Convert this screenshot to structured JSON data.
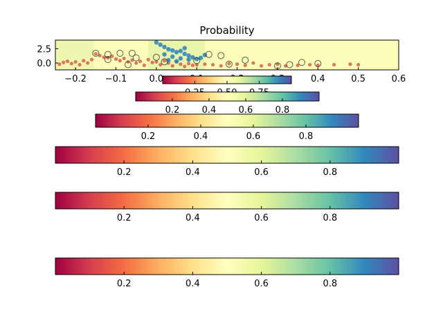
{
  "chart_data": {
    "type": "scatter",
    "title": "Probability",
    "xlabel": "",
    "ylabel": "",
    "xlim": [
      -0.25,
      0.6
    ],
    "ylim": [
      -1.2,
      4.0
    ],
    "x_ticks": [
      "−0.2",
      "−0.1",
      "0.0",
      "0.1",
      "0.2",
      "0.3",
      "0.4",
      "0.5",
      "0.6"
    ],
    "x_tick_values": [
      -0.2,
      -0.1,
      0.0,
      0.1,
      0.2,
      0.3,
      0.4,
      0.5,
      0.6
    ],
    "y_ticks": [
      "0.0",
      "2.5"
    ],
    "y_tick_values": [
      0.0,
      2.5
    ],
    "grid": false,
    "colormap": "Spectral",
    "colormap_stops": [
      "#9e0142",
      "#d53e4f",
      "#f46d43",
      "#fdae61",
      "#fee08b",
      "#ffffbf",
      "#e6f598",
      "#abdda4",
      "#66c2a5",
      "#3288bd",
      "#5e4fa2"
    ],
    "point_color_low": "#d6604d",
    "point_color_high": "#2c7fb8",
    "background_threshold_x": -0.155,
    "series": [
      {
        "values": [
          [
            -0.24,
            -0.2
          ],
          [
            -0.23,
            0.1
          ],
          [
            -0.22,
            0.3
          ],
          [
            -0.21,
            -0.1
          ],
          [
            -0.2,
            0.2
          ],
          [
            -0.19,
            -0.3
          ],
          [
            -0.18,
            0.4
          ],
          [
            -0.17,
            0.0
          ],
          [
            -0.16,
            0.6
          ],
          [
            -0.15,
            1.6
          ],
          [
            -0.14,
            1.3
          ],
          [
            -0.13,
            1.0
          ],
          [
            -0.12,
            0.9
          ],
          [
            -0.11,
            1.2
          ],
          [
            -0.1,
            0.7
          ],
          [
            -0.09,
            0.4
          ],
          [
            -0.08,
            0.8
          ],
          [
            -0.07,
            0.2
          ],
          [
            -0.06,
            0.5
          ],
          [
            -0.05,
            0.0
          ],
          [
            -0.04,
            0.3
          ],
          [
            -0.03,
            -0.4
          ],
          [
            -0.02,
            0.6
          ],
          [
            -0.01,
            0.1
          ],
          [
            0.0,
            0.2
          ],
          [
            0.01,
            -0.3
          ],
          [
            0.02,
            0.4
          ],
          [
            0.03,
            0.0
          ],
          [
            0.04,
            -0.5
          ],
          [
            0.05,
            0.2
          ],
          [
            0.06,
            -0.2
          ],
          [
            0.07,
            -0.6
          ],
          [
            0.08,
            -0.1
          ],
          [
            0.09,
            -0.4
          ],
          [
            0.1,
            -0.3
          ],
          [
            0.12,
            -0.2
          ],
          [
            0.14,
            -0.3
          ],
          [
            0.16,
            -0.5
          ],
          [
            0.18,
            -0.1
          ],
          [
            0.2,
            -0.2
          ],
          [
            0.22,
            -0.4
          ],
          [
            0.24,
            0.0
          ],
          [
            0.26,
            -0.5
          ],
          [
            0.28,
            -0.3
          ],
          [
            0.3,
            -0.2
          ],
          [
            0.32,
            -0.5
          ],
          [
            0.35,
            -0.4
          ],
          [
            0.38,
            -0.3
          ],
          [
            0.4,
            -0.4
          ],
          [
            0.44,
            -0.3
          ],
          [
            0.48,
            -0.2
          ],
          [
            0.5,
            -0.3
          ]
        ]
      },
      {
        "values": [
          [
            0.0,
            3.6
          ],
          [
            0.01,
            3.2
          ],
          [
            0.02,
            2.8
          ],
          [
            0.03,
            2.4
          ],
          [
            0.04,
            2.2
          ],
          [
            0.05,
            1.9
          ],
          [
            0.06,
            2.1
          ],
          [
            0.07,
            1.6
          ],
          [
            0.08,
            1.3
          ],
          [
            0.09,
            1.0
          ],
          [
            0.1,
            0.7
          ],
          [
            0.02,
            1.5
          ],
          [
            0.04,
            1.1
          ],
          [
            0.06,
            0.8
          ],
          [
            0.03,
            0.5
          ],
          [
            0.05,
            0.3
          ],
          [
            0.08,
            0.6
          ],
          [
            0.11,
            0.9
          ],
          [
            0.12,
            1.4
          ],
          [
            0.07,
            2.6
          ]
        ]
      }
    ],
    "circled_points": [
      [
        -0.15,
        1.7
      ],
      [
        -0.12,
        1.5
      ],
      [
        -0.09,
        1.7
      ],
      [
        -0.06,
        1.7
      ],
      [
        -0.12,
        0.6
      ],
      [
        -0.05,
        0.9
      ],
      [
        -0.07,
        -0.3
      ],
      [
        0.13,
        1.5
      ],
      [
        0.16,
        1.3
      ],
      [
        0.1,
        0.4
      ],
      [
        0.18,
        -0.2
      ],
      [
        0.33,
        -0.3
      ],
      [
        0.36,
        0.1
      ],
      [
        0.4,
        -0.1
      ],
      [
        0.22,
        0.5
      ],
      [
        0.3,
        -0.5
      ],
      [
        0.02,
        0.2
      ],
      [
        0.0,
        1.0
      ]
    ],
    "colorbars": [
      {
        "ticks": [
          "0.25",
          "0.50",
          "0.75"
        ],
        "tick_values": [
          0.25,
          0.5,
          0.75
        ],
        "range": [
          0.0,
          1.0
        ]
      },
      {
        "ticks": [
          "0.2",
          "0.4",
          "0.6",
          "0.8"
        ],
        "tick_values": [
          0.2,
          0.4,
          0.6,
          0.8
        ],
        "range": [
          0.0,
          1.0
        ]
      },
      {
        "ticks": [
          "0.2",
          "0.4",
          "0.6",
          "0.8"
        ],
        "tick_values": [
          0.2,
          0.4,
          0.6,
          0.8
        ],
        "range": [
          0.0,
          1.0
        ]
      },
      {
        "ticks": [
          "0.2",
          "0.4",
          "0.6",
          "0.8"
        ],
        "tick_values": [
          0.2,
          0.4,
          0.6,
          0.8
        ],
        "range": [
          0.0,
          1.0
        ]
      },
      {
        "ticks": [
          "0.2",
          "0.4",
          "0.6",
          "0.8"
        ],
        "tick_values": [
          0.2,
          0.4,
          0.6,
          0.8
        ],
        "range": [
          0.0,
          1.0
        ]
      },
      {
        "ticks": [
          "0.2",
          "0.4",
          "0.6",
          "0.8"
        ],
        "tick_values": [
          0.2,
          0.4,
          0.6,
          0.8
        ],
        "range": [
          0.0,
          1.0
        ]
      }
    ]
  }
}
